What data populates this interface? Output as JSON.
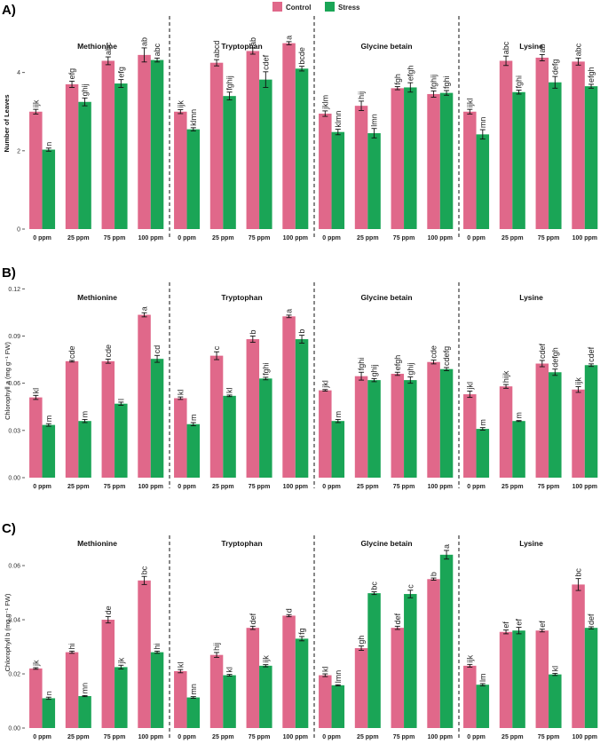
{
  "figure": {
    "colors": {
      "control": "#e0688a",
      "stress": "#1aa556"
    },
    "legend": {
      "control": "Control",
      "stress": "Stress"
    }
  },
  "chart_data": [
    {
      "type": "bar",
      "panel_label": "A)",
      "ylabel": "Number of Leaves",
      "ylim": [
        0,
        5.4
      ],
      "yticks": [
        0,
        2,
        4
      ],
      "ytick_labels": [
        "0",
        "2",
        "4"
      ],
      "groups": [
        "Methionine",
        "Tryptophan",
        "Glycine betain",
        "Lysine"
      ],
      "categories": [
        "0 ppm",
        "25 ppm",
        "75 ppm",
        "100 ppm"
      ],
      "series": [
        {
          "name": "Control",
          "values": [
            [
              3.0,
              3.7,
              4.3,
              4.45
            ],
            [
              3.0,
              4.25,
              4.55,
              4.75
            ],
            [
              2.95,
              3.15,
              3.6,
              3.45
            ],
            [
              3.0,
              4.3,
              4.38,
              4.28
            ]
          ],
          "errors": [
            [
              0.06,
              0.08,
              0.1,
              0.18
            ],
            [
              0.05,
              0.08,
              0.08,
              0.04
            ],
            [
              0.07,
              0.12,
              0.04,
              0.08
            ],
            [
              0.06,
              0.12,
              0.08,
              0.09
            ]
          ],
          "letters": [
            [
              "ijk",
              "efg",
              "abc",
              "ab"
            ],
            [
              "ijk",
              "abcd",
              "ab",
              "a"
            ],
            [
              "jklm",
              "hij",
              "fgh",
              "fghij"
            ],
            [
              "ijkl",
              "abc",
              "ab",
              "abc"
            ]
          ]
        },
        {
          "name": "Stress",
          "values": [
            [
              2.03,
              3.25,
              3.72,
              4.32
            ],
            [
              2.55,
              3.4,
              3.82,
              4.1
            ],
            [
              2.48,
              2.45,
              3.62,
              3.48
            ],
            [
              2.42,
              3.5,
              3.75,
              3.65
            ]
          ],
          "errors": [
            [
              0.04,
              0.1,
              0.1,
              0.05
            ],
            [
              0.04,
              0.1,
              0.2,
              0.06
            ],
            [
              0.07,
              0.12,
              0.12,
              0.06
            ],
            [
              0.12,
              0.05,
              0.15,
              0.05
            ]
          ],
          "letters": [
            [
              "n",
              "ghij",
              "efg",
              "abc"
            ],
            [
              "klmn",
              "fghij",
              "cdef",
              "bcde"
            ],
            [
              "klmn",
              "lmn",
              "efgh",
              "fghi"
            ],
            [
              "mn",
              "fghi",
              "defg",
              "efgh"
            ]
          ]
        }
      ]
    },
    {
      "type": "bar",
      "panel_label": "B)",
      "ylabel": "Chlorophyll a (mg g⁻¹ FW)",
      "ylim": [
        0,
        0.123
      ],
      "yticks": [
        0,
        0.03,
        0.06,
        0.09,
        0.12
      ],
      "ytick_labels": [
        "0.00",
        "0.03",
        "0.06",
        "0.09",
        "0.12"
      ],
      "groups": [
        "Methionine",
        "Tryptophan",
        "Glycine betain",
        "Lysine"
      ],
      "categories": [
        "0 ppm",
        "25 ppm",
        "75 ppm",
        "100 ppm"
      ],
      "series": [
        {
          "name": "Control",
          "values": [
            [
              0.051,
              0.074,
              0.074,
              0.1035
            ],
            [
              0.0505,
              0.0775,
              0.088,
              0.1025
            ],
            [
              0.0555,
              0.0645,
              0.066,
              0.0735
            ],
            [
              0.053,
              0.058,
              0.0725,
              0.056
            ]
          ],
          "errors": [
            [
              0.0013,
              0.0005,
              0.0013,
              0.0013
            ],
            [
              0.0008,
              0.0025,
              0.002,
              0.0008
            ],
            [
              0.0005,
              0.0025,
              0.001,
              0.0012
            ],
            [
              0.002,
              0.0012,
              0.002,
              0.0018
            ]
          ],
          "letters": [
            [
              "kl",
              "cde",
              "cde",
              "a"
            ],
            [
              "kl",
              "c",
              "b",
              "a"
            ],
            [
              "jkl",
              "fghi",
              "efgh",
              "cde"
            ],
            [
              "jkl",
              "hijk",
              "cdef",
              "ijk"
            ]
          ]
        },
        {
          "name": "Stress",
          "values": [
            [
              0.0335,
              0.036,
              0.047,
              0.0755
            ],
            [
              0.034,
              0.052,
              0.063,
              0.088
            ],
            [
              0.036,
              0.062,
              0.062,
              0.069
            ],
            [
              0.031,
              0.036,
              0.067,
              0.0715
            ]
          ],
          "errors": [
            [
              0.0008,
              0.001,
              0.001,
              0.0022
            ],
            [
              0.001,
              0.0005,
              0.0008,
              0.0025
            ],
            [
              0.001,
              0.001,
              0.002,
              0.001
            ],
            [
              0.0008,
              0.0003,
              0.002,
              0.0008
            ]
          ],
          "letters": [
            [
              "m",
              "m",
              "l",
              "cd"
            ],
            [
              "m",
              "kl",
              "fghi",
              "b"
            ],
            [
              "m",
              "ghij",
              "ghij",
              "cdefg"
            ],
            [
              "m",
              "m",
              "defgh",
              "cdef"
            ]
          ]
        }
      ]
    },
    {
      "type": "bar",
      "panel_label": "C)",
      "ylabel": "Chlorophyll b (mg g⁻¹ FW)",
      "ylim": [
        0,
        0.0705
      ],
      "yticks": [
        0,
        0.02,
        0.04,
        0.06
      ],
      "ytick_labels": [
        "0.00",
        "0.02",
        "0.04",
        "0.06"
      ],
      "groups": [
        "Methionine",
        "Tryptophan",
        "Glycine betain",
        "Lysine"
      ],
      "categories": [
        "0 ppm",
        "25 ppm",
        "75 ppm",
        "100 ppm"
      ],
      "series": [
        {
          "name": "Control",
          "values": [
            [
              0.022,
              0.028,
              0.04,
              0.0545
            ],
            [
              0.021,
              0.027,
              0.037,
              0.0415
            ],
            [
              0.0195,
              0.0295,
              0.037,
              0.055
            ],
            [
              0.023,
              0.0355,
              0.036,
              0.053
            ]
          ],
          "errors": [
            [
              0.0003,
              0.0004,
              0.0012,
              0.0015
            ],
            [
              0.0006,
              0.0009,
              0.0006,
              0.0004
            ],
            [
              0.0005,
              0.0008,
              0.0006,
              0.0004
            ],
            [
              0.0005,
              0.0007,
              0.0005,
              0.0022
            ]
          ],
          "letters": [
            [
              "jk",
              "hi",
              "de",
              "bc"
            ],
            [
              "kl",
              "hij",
              "def",
              "d"
            ],
            [
              "kl",
              "gh",
              "def",
              "b"
            ],
            [
              "ijk",
              "ef",
              "ef",
              "bc"
            ]
          ]
        },
        {
          "name": "Stress",
          "values": [
            [
              0.011,
              0.0118,
              0.0225,
              0.028
            ],
            [
              0.0113,
              0.0195,
              0.023,
              0.033
            ],
            [
              0.0158,
              0.0498,
              0.0495,
              0.064
            ],
            [
              0.016,
              0.036,
              0.0198,
              0.037
            ]
          ],
          "errors": [
            [
              0.0004,
              0.0002,
              0.0007,
              0.0004
            ],
            [
              0.0003,
              0.0003,
              0.0004,
              0.0008
            ],
            [
              0.0002,
              0.0005,
              0.0014,
              0.0016
            ],
            [
              0.0004,
              0.0012,
              0.0004,
              0.0004
            ]
          ],
          "letters": [
            [
              "n",
              "mn",
              "jk",
              "hi"
            ],
            [
              "mn",
              "kl",
              "ijk",
              "fg"
            ],
            [
              "lmn",
              "bc",
              "c",
              "a"
            ],
            [
              "lm",
              "ef",
              "kl",
              "def"
            ]
          ]
        }
      ]
    }
  ]
}
